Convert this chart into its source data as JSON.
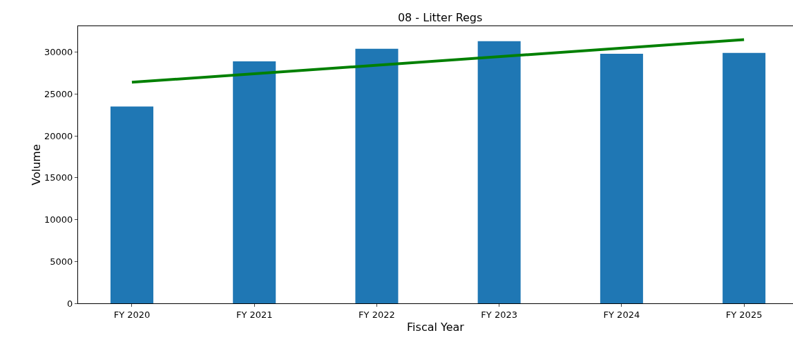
{
  "chart_data": {
    "type": "bar",
    "title": "08 - Litter Regs",
    "xlabel": "Fiscal Year",
    "ylabel": "Volume",
    "categories": [
      "FY 2020",
      "FY 2021",
      "FY 2022",
      "FY 2023",
      "FY 2024",
      "FY 2025"
    ],
    "series": [
      {
        "color": "#1f77b4",
        "values": [
          23500,
          28900,
          30400,
          31300,
          29800,
          29900
        ]
      },
      {
        "type": "line",
        "color": "#008000",
        "x": [
          "FY 2020",
          "FY 2025"
        ],
        "values": [
          26400,
          31500
        ]
      }
    ],
    "ylim": [
      0,
      33100
    ],
    "yticks": [
      0,
      5000,
      10000,
      15000,
      20000,
      25000,
      30000
    ],
    "grid": false
  }
}
